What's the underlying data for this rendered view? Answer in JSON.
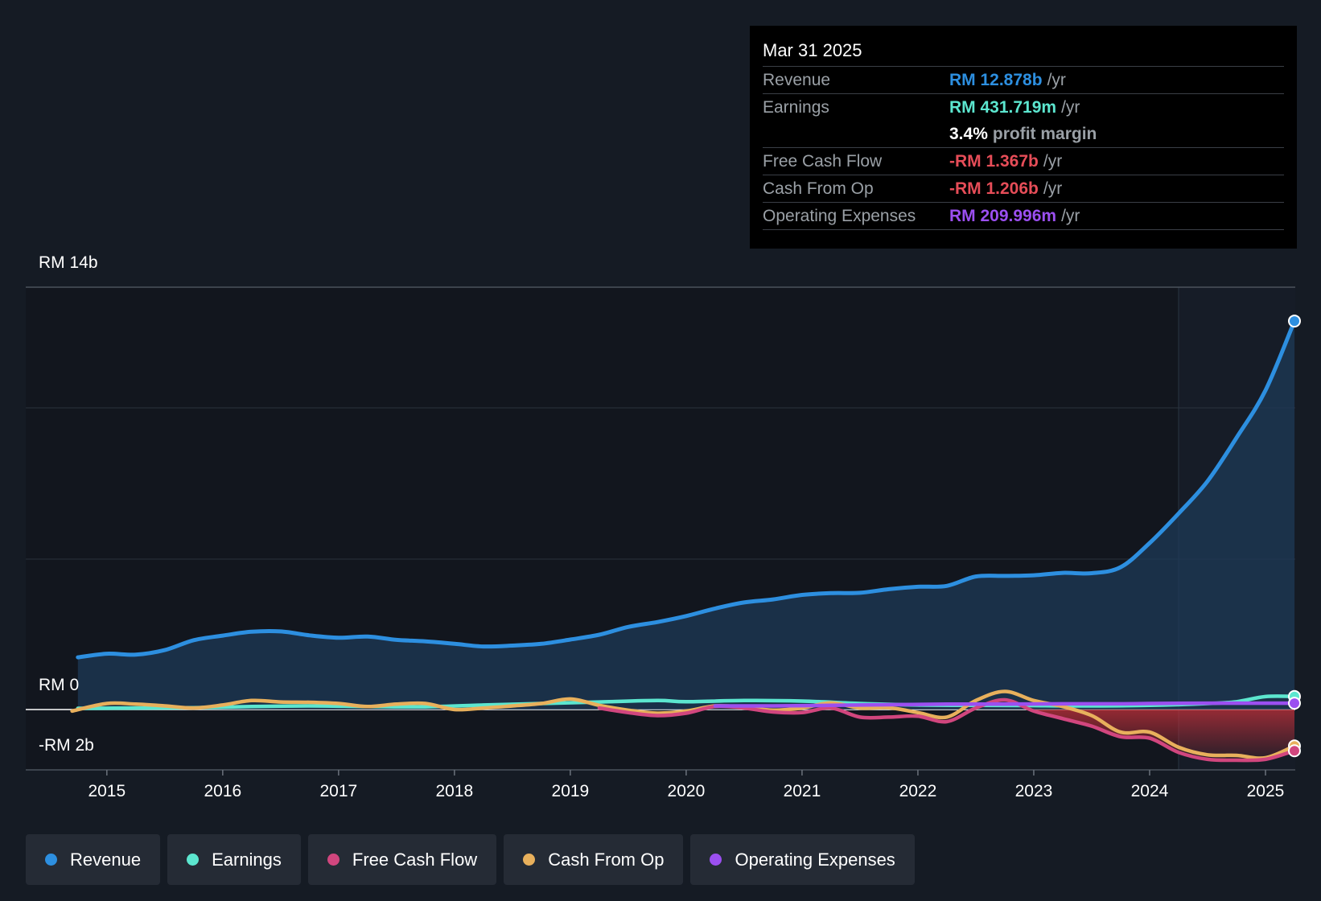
{
  "tooltip": {
    "date": "Mar 31 2025",
    "revenue_label": "Revenue",
    "revenue_value": "RM 12.878b",
    "earnings_label": "Earnings",
    "earnings_value": "RM 431.719m",
    "margin_pct": "3.4%",
    "margin_label": "profit margin",
    "fcf_label": "Free Cash Flow",
    "fcf_value": "-RM 1.367b",
    "cfo_label": "Cash From Op",
    "cfo_value": "-RM 1.206b",
    "opex_label": "Operating Expenses",
    "opex_value": "RM 209.996m",
    "unit": "/yr"
  },
  "legend": {
    "revenue": "Revenue",
    "earnings": "Earnings",
    "fcf": "Free Cash Flow",
    "cfo": "Cash From Op",
    "opex": "Operating Expenses"
  },
  "colors": {
    "revenue": "#2d8fe0",
    "earnings": "#5ce6cf",
    "fcf": "#d1467e",
    "cfo": "#e8b05c",
    "opex": "#9b4ff0",
    "negative": "#e64d58",
    "background": "#151b24"
  },
  "chart_data": {
    "type": "line",
    "y_tick_labels": [
      "RM 14b",
      "RM 0",
      "-RM 2b"
    ],
    "ylim": [
      -2,
      14
    ],
    "xlim": [
      2014.3,
      2025.25
    ],
    "x_ticks": [
      2015,
      2016,
      2017,
      2018,
      2019,
      2020,
      2021,
      2022,
      2023,
      2024,
      2025
    ],
    "x_tick_labels": [
      "2015",
      "2016",
      "2017",
      "2018",
      "2019",
      "2020",
      "2021",
      "2022",
      "2023",
      "2024",
      "2025"
    ],
    "highlight_start": 2024.25,
    "grid": true,
    "series": [
      {
        "name": "Revenue",
        "key": "revenue",
        "points": [
          [
            2014.75,
            1.73
          ],
          [
            2015.0,
            1.85
          ],
          [
            2015.25,
            1.82
          ],
          [
            2015.5,
            1.97
          ],
          [
            2015.75,
            2.3
          ],
          [
            2016.0,
            2.45
          ],
          [
            2016.25,
            2.58
          ],
          [
            2016.5,
            2.59
          ],
          [
            2016.75,
            2.46
          ],
          [
            2017.0,
            2.38
          ],
          [
            2017.25,
            2.42
          ],
          [
            2017.5,
            2.31
          ],
          [
            2017.75,
            2.26
          ],
          [
            2018.0,
            2.18
          ],
          [
            2018.25,
            2.09
          ],
          [
            2018.5,
            2.12
          ],
          [
            2018.75,
            2.18
          ],
          [
            2019.0,
            2.32
          ],
          [
            2019.25,
            2.48
          ],
          [
            2019.5,
            2.74
          ],
          [
            2019.75,
            2.9
          ],
          [
            2020.0,
            3.1
          ],
          [
            2020.25,
            3.35
          ],
          [
            2020.5,
            3.55
          ],
          [
            2020.75,
            3.65
          ],
          [
            2021.0,
            3.8
          ],
          [
            2021.25,
            3.86
          ],
          [
            2021.5,
            3.87
          ],
          [
            2021.75,
            3.99
          ],
          [
            2022.0,
            4.07
          ],
          [
            2022.25,
            4.1
          ],
          [
            2022.5,
            4.41
          ],
          [
            2022.75,
            4.43
          ],
          [
            2023.0,
            4.45
          ],
          [
            2023.25,
            4.53
          ],
          [
            2023.5,
            4.52
          ],
          [
            2023.75,
            4.72
          ],
          [
            2024.0,
            5.52
          ],
          [
            2024.25,
            6.5
          ],
          [
            2024.5,
            7.57
          ],
          [
            2024.75,
            9.01
          ],
          [
            2025.0,
            10.58
          ],
          [
            2025.25,
            12.878
          ]
        ]
      },
      {
        "name": "Earnings",
        "key": "earnings",
        "points": [
          [
            2014.75,
            0.04
          ],
          [
            2015.25,
            0.05
          ],
          [
            2015.75,
            0.06
          ],
          [
            2016.25,
            0.1
          ],
          [
            2016.75,
            0.12
          ],
          [
            2017.25,
            0.1
          ],
          [
            2017.75,
            0.09
          ],
          [
            2018.25,
            0.15
          ],
          [
            2018.75,
            0.2
          ],
          [
            2019.25,
            0.25
          ],
          [
            2019.75,
            0.3
          ],
          [
            2020.0,
            0.26
          ],
          [
            2020.5,
            0.3
          ],
          [
            2021.0,
            0.28
          ],
          [
            2021.5,
            0.2
          ],
          [
            2022.0,
            0.15
          ],
          [
            2022.5,
            0.14
          ],
          [
            2023.0,
            0.13
          ],
          [
            2023.5,
            0.12
          ],
          [
            2024.0,
            0.14
          ],
          [
            2024.5,
            0.2
          ],
          [
            2024.75,
            0.26
          ],
          [
            2025.0,
            0.43
          ],
          [
            2025.25,
            0.432
          ]
        ]
      },
      {
        "name": "Free Cash Flow",
        "key": "fcf",
        "points": [
          [
            2019.25,
            0.05
          ],
          [
            2019.5,
            -0.1
          ],
          [
            2019.75,
            -0.2
          ],
          [
            2020.0,
            -0.12
          ],
          [
            2020.25,
            0.1
          ],
          [
            2020.5,
            0.05
          ],
          [
            2020.75,
            -0.08
          ],
          [
            2021.0,
            -0.1
          ],
          [
            2021.25,
            0.05
          ],
          [
            2021.5,
            -0.25
          ],
          [
            2021.75,
            -0.25
          ],
          [
            2022.0,
            -0.22
          ],
          [
            2022.25,
            -0.4
          ],
          [
            2022.5,
            0.05
          ],
          [
            2022.75,
            0.32
          ],
          [
            2023.0,
            -0.05
          ],
          [
            2023.25,
            -0.3
          ],
          [
            2023.5,
            -0.55
          ],
          [
            2023.75,
            -0.9
          ],
          [
            2024.0,
            -0.95
          ],
          [
            2024.25,
            -1.42
          ],
          [
            2024.5,
            -1.65
          ],
          [
            2024.75,
            -1.68
          ],
          [
            2025.0,
            -1.65
          ],
          [
            2025.25,
            -1.367
          ]
        ]
      },
      {
        "name": "Cash From Op",
        "key": "cfo",
        "points": [
          [
            2014.7,
            -0.05
          ],
          [
            2015.0,
            0.2
          ],
          [
            2015.25,
            0.18
          ],
          [
            2015.5,
            0.12
          ],
          [
            2015.75,
            0.05
          ],
          [
            2016.0,
            0.15
          ],
          [
            2016.25,
            0.3
          ],
          [
            2016.5,
            0.25
          ],
          [
            2016.75,
            0.24
          ],
          [
            2017.0,
            0.2
          ],
          [
            2017.25,
            0.1
          ],
          [
            2017.5,
            0.18
          ],
          [
            2017.75,
            0.2
          ],
          [
            2018.0,
            0.0
          ],
          [
            2018.25,
            0.05
          ],
          [
            2018.5,
            0.12
          ],
          [
            2018.75,
            0.2
          ],
          [
            2019.0,
            0.35
          ],
          [
            2019.25,
            0.14
          ],
          [
            2019.5,
            -0.02
          ],
          [
            2019.75,
            -0.12
          ],
          [
            2020.0,
            -0.05
          ],
          [
            2020.25,
            0.12
          ],
          [
            2020.5,
            0.08
          ],
          [
            2020.75,
            -0.02
          ],
          [
            2021.0,
            0.05
          ],
          [
            2021.25,
            0.22
          ],
          [
            2021.5,
            0.05
          ],
          [
            2021.75,
            0.06
          ],
          [
            2022.0,
            -0.1
          ],
          [
            2022.25,
            -0.25
          ],
          [
            2022.5,
            0.3
          ],
          [
            2022.75,
            0.6
          ],
          [
            2023.0,
            0.3
          ],
          [
            2023.25,
            0.1
          ],
          [
            2023.5,
            -0.2
          ],
          [
            2023.75,
            -0.75
          ],
          [
            2024.0,
            -0.75
          ],
          [
            2024.25,
            -1.25
          ],
          [
            2024.5,
            -1.5
          ],
          [
            2024.75,
            -1.52
          ],
          [
            2025.0,
            -1.6
          ],
          [
            2025.25,
            -1.206
          ]
        ]
      },
      {
        "name": "Operating Expenses",
        "key": "opex",
        "points": [
          [
            2020.25,
            0.12
          ],
          [
            2020.75,
            0.12
          ],
          [
            2021.25,
            0.14
          ],
          [
            2021.75,
            0.16
          ],
          [
            2022.25,
            0.18
          ],
          [
            2022.75,
            0.18
          ],
          [
            2023.25,
            0.19
          ],
          [
            2023.75,
            0.19
          ],
          [
            2024.0,
            0.2
          ],
          [
            2024.5,
            0.21
          ],
          [
            2024.75,
            0.21
          ],
          [
            2025.0,
            0.21
          ],
          [
            2025.25,
            0.21
          ]
        ]
      }
    ]
  }
}
